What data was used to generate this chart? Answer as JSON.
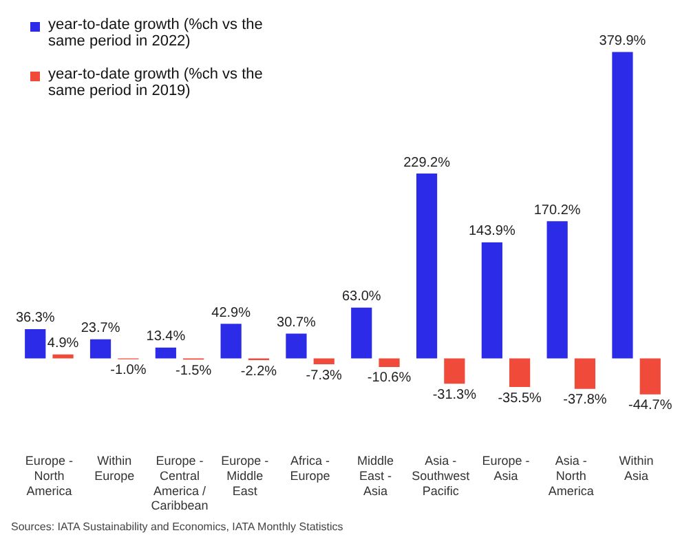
{
  "chart_data": {
    "type": "bar",
    "categories": [
      "Europe - North America",
      "Within Europe",
      "Europe - Central America / Caribbean",
      "Europe - Middle East",
      "Africa - Europe",
      "Middle East - Asia",
      "Asia - Southwest Pacific",
      "Europe - Asia",
      "Asia - North America",
      "Within Asia"
    ],
    "series": [
      {
        "name": "year-to-date growth (%ch vs the same period in 2022)",
        "color": "#2b2be8",
        "values": [
          36.3,
          23.7,
          13.4,
          42.9,
          30.7,
          63.0,
          229.2,
          143.9,
          170.2,
          379.9
        ],
        "value_labels": [
          "36.3%",
          "23.7%",
          "13.4%",
          "42.9%",
          "30.7%",
          "63.0%",
          "229.2%",
          "143.9%",
          "170.2%",
          "379.9%"
        ]
      },
      {
        "name": "year-to-date growth (%ch vs the same period in 2019)",
        "color": "#f04a3a",
        "values": [
          4.9,
          -1.0,
          -1.5,
          -2.2,
          -7.3,
          -10.6,
          -31.3,
          -35.5,
          -37.8,
          -44.7
        ],
        "value_labels": [
          "4.9%",
          "-1.0%",
          "-1.5%",
          "-2.2%",
          "-7.3%",
          "-10.6%",
          "-31.3%",
          "-35.5%",
          "-37.8%",
          "-44.7%"
        ]
      }
    ],
    "legend": "top left",
    "annotations": [
      "Sources: IATA Sustainability and Economics, IATA Monthly Statistics"
    ]
  }
}
